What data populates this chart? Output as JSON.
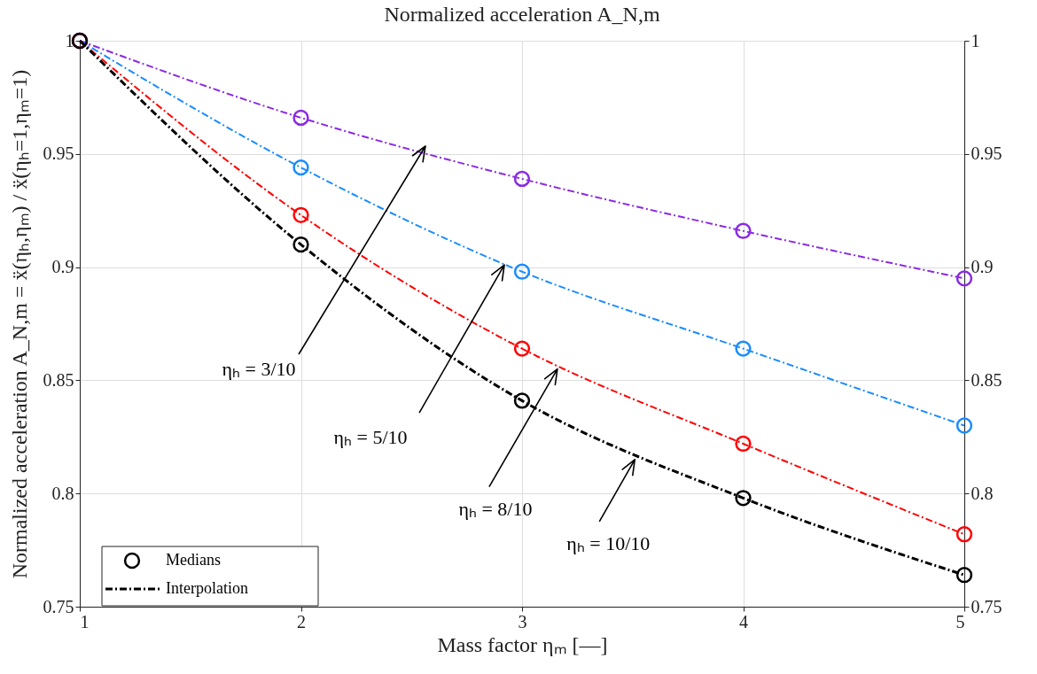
{
  "chart_data": {
    "type": "line",
    "title": "Normalized acceleration A_N,m",
    "xlabel": "Mass factor ηₘ [—]",
    "ylabel": "Normalized acceleration A_N,m = ẍ(ηₕ,ηₘ) / ẍ(ηₕ=1,ηₘ=1)",
    "x": [
      1,
      2,
      3,
      4,
      5
    ],
    "series": [
      {
        "marker": "circle",
        "line_style": "dashed",
        "color": "#8a2be2",
        "values": [
          1,
          0.966,
          0.939,
          0.916,
          0.895
        ]
      },
      {
        "marker": "circle",
        "line_style": "dashed",
        "color": "#1a8cff",
        "values": [
          1,
          0.944,
          0.898,
          0.864,
          0.83
        ]
      },
      {
        "marker": "circle",
        "line_style": "dashed",
        "color": "#ff0000",
        "values": [
          1,
          0.923,
          0.864,
          0.822,
          0.782
        ]
      },
      {
        "marker": "none",
        "line_style": "dashed",
        "name": "Interpolation",
        "color": "#000000",
        "values": [
          1,
          0.91,
          0.841,
          0.798,
          0.764
        ]
      },
      {
        "type": "scatter",
        "marker": "circle",
        "name": "Medians",
        "color": "#000000",
        "values": [
          1,
          0.91,
          0.841,
          0.798,
          0.764
        ]
      }
    ],
    "annotations": [
      "ηₕ = 3/10",
      {
        "text": "ηₕ = 5/10",
        "x": 2.92,
        "y": 0.901
      },
      {
        "text": "ηₕ = 8/10",
        "x": 3.16,
        "y": 0.855
      },
      {
        "text": "ηₕ = 10/10",
        "x": 3.51,
        "y": 0.815
      }
    ],
    "xlim": [
      1,
      5
    ],
    "xticks": [
      1,
      2,
      3,
      4,
      5
    ],
    "ylim": [
      0.75,
      1
    ],
    "yticks": [
      0.75,
      0.8,
      0.85,
      0.9,
      0.95,
      1
    ],
    "y2lim": [
      0.75,
      1
    ],
    "y2ticks": [
      0.75,
      0.8,
      0.85,
      0.9,
      0.95,
      1
    ],
    "grid": true,
    "legend": "bottom left"
  }
}
